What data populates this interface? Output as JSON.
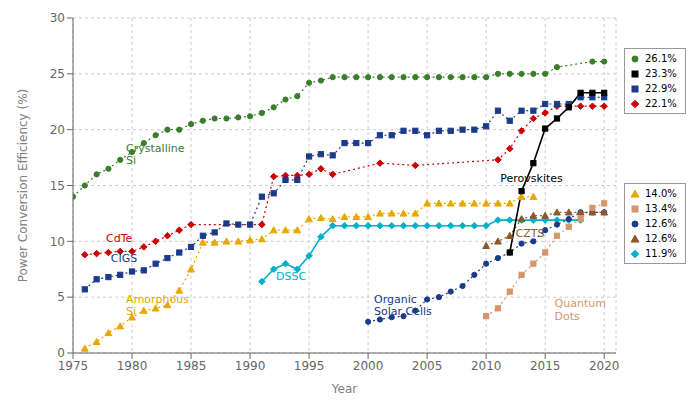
{
  "chart_data": {
    "type": "line",
    "xlabel": "Year",
    "ylabel": "Power Conversion Efficiency (%)",
    "xlim": [
      1975,
      2021
    ],
    "ylim": [
      0,
      30
    ],
    "xticks": [
      1975,
      1980,
      1985,
      1990,
      1995,
      2000,
      2005,
      2010,
      2015,
      2020
    ],
    "yticks": [
      0,
      5,
      10,
      15,
      20,
      25,
      30
    ],
    "grid": true,
    "series": [
      {
        "color": "#3a7d2a",
        "marker": "o",
        "line_style": "dotted",
        "x": [
          1975,
          1976,
          1977,
          1978,
          1979,
          1980,
          1981,
          1982,
          1983,
          1984,
          1985,
          1986,
          1987,
          1988,
          1989,
          1990,
          1991,
          1992,
          1993,
          1994,
          1995,
          1996,
          1997,
          1998,
          1999,
          2000,
          2001,
          2002,
          2003,
          2004,
          2005,
          2006,
          2007,
          2008,
          2009,
          2010,
          2011,
          2012,
          2013,
          2014,
          2015,
          2016,
          2019,
          2020
        ],
        "values": [
          14.0,
          15.0,
          16.0,
          16.5,
          17.3,
          18.0,
          18.8,
          19.5,
          20.0,
          20.0,
          20.5,
          20.8,
          21.0,
          21.0,
          21.1,
          21.2,
          21.5,
          22.0,
          22.7,
          23.0,
          24.2,
          24.4,
          24.7,
          24.7,
          24.7,
          24.7,
          24.7,
          24.7,
          24.7,
          24.7,
          24.7,
          24.7,
          24.7,
          24.7,
          24.7,
          24.7,
          25.0,
          25.0,
          25.0,
          25.0,
          25.0,
          25.6,
          26.1,
          26.1
        ]
      },
      {
        "color": "#cc0000",
        "marker": "D",
        "line_style": "dotted",
        "x": [
          1976,
          1977,
          1978,
          1979,
          1980,
          1981,
          1982,
          1983,
          1984,
          1985,
          1991,
          1992,
          1993,
          1994,
          1995,
          1996,
          1997,
          2001,
          2004,
          2011,
          2012,
          2013,
          2014,
          2015,
          2016,
          2017,
          2018,
          2019,
          2020
        ],
        "values": [
          8.8,
          8.9,
          9.0,
          9.1,
          9.1,
          9.5,
          10.0,
          10.5,
          11.0,
          11.5,
          11.5,
          15.8,
          15.9,
          15.9,
          16.0,
          16.5,
          16.0,
          17.0,
          16.8,
          17.3,
          18.3,
          19.9,
          21.0,
          21.5,
          22.1,
          22.1,
          22.1,
          22.1,
          22.1
        ]
      },
      {
        "color": "#1a3a8a",
        "marker": "s",
        "line_style": "dotted",
        "x": [
          1976,
          1977,
          1978,
          1979,
          1980,
          1981,
          1982,
          1983,
          1984,
          1985,
          1986,
          1987,
          1988,
          1989,
          1990,
          1991,
          1992,
          1993,
          1994,
          1995,
          1996,
          1997,
          1998,
          1999,
          2000,
          2001,
          2002,
          2003,
          2004,
          2005,
          2006,
          2007,
          2008,
          2009,
          2010,
          2011,
          2012,
          2013,
          2014,
          2015,
          2016,
          2017,
          2018,
          2019,
          2020
        ],
        "values": [
          5.7,
          6.6,
          6.8,
          7.0,
          7.3,
          7.4,
          8.0,
          8.5,
          9.0,
          9.5,
          10.5,
          10.8,
          11.6,
          11.5,
          11.5,
          14.0,
          14.3,
          15.5,
          15.5,
          17.6,
          17.8,
          17.7,
          18.8,
          18.8,
          18.8,
          19.5,
          19.5,
          19.9,
          19.9,
          19.5,
          19.9,
          19.9,
          20.0,
          20.0,
          20.3,
          21.7,
          20.8,
          21.7,
          21.7,
          22.3,
          22.3,
          22.3,
          22.9,
          22.9,
          22.9
        ]
      },
      {
        "color": "#e6a800",
        "marker": "^",
        "line_style": "dotted",
        "x": [
          1976,
          1977,
          1978,
          1979,
          1980,
          1981,
          1982,
          1983,
          1984,
          1985,
          1986,
          1987,
          1988,
          1989,
          1990,
          1991,
          1992,
          1993,
          1994,
          1995,
          1996,
          1997,
          1998,
          1999,
          2000,
          2001,
          2002,
          2003,
          2004,
          2005,
          2006,
          2007,
          2008,
          2009,
          2010,
          2011,
          2012,
          2013,
          2014
        ],
        "values": [
          0.4,
          1.0,
          1.8,
          2.4,
          3.2,
          3.8,
          4.0,
          4.3,
          5.6,
          7.5,
          9.9,
          9.9,
          10.0,
          10.0,
          10.1,
          10.2,
          11.0,
          11.0,
          11.0,
          12.0,
          12.1,
          12.0,
          12.2,
          12.2,
          12.2,
          12.5,
          12.5,
          12.5,
          12.5,
          13.4,
          13.4,
          13.4,
          13.4,
          13.4,
          13.4,
          13.4,
          13.4,
          14.0,
          14.0
        ]
      },
      {
        "color": "#00b0c8",
        "marker": "D",
        "line_style": "solid",
        "x": [
          1991,
          1992,
          1993,
          1994,
          1995,
          1996,
          1997,
          1998,
          1999,
          2000,
          2001,
          2002,
          2003,
          2004,
          2005,
          2006,
          2007,
          2008,
          2009,
          2010,
          2011,
          2012,
          2013,
          2014,
          2015,
          2016,
          2017,
          2018
        ],
        "values": [
          6.4,
          7.5,
          8.0,
          7.5,
          8.7,
          10.4,
          11.4,
          11.4,
          11.4,
          11.4,
          11.4,
          11.4,
          11.4,
          11.4,
          11.4,
          11.4,
          11.4,
          11.4,
          11.4,
          11.4,
          11.9,
          11.9,
          11.9,
          11.9,
          11.9,
          11.9,
          11.9,
          11.9
        ]
      },
      {
        "color": "#1a3a8a",
        "marker": "o",
        "line_style": "dotted",
        "x": [
          2000,
          2001,
          2002,
          2003,
          2004,
          2005,
          2006,
          2007,
          2008,
          2009,
          2010,
          2011,
          2012,
          2013,
          2014,
          2015,
          2016,
          2017,
          2018,
          2019,
          2020
        ],
        "values": [
          2.8,
          3.0,
          3.2,
          3.3,
          3.8,
          4.8,
          5.0,
          5.5,
          6.0,
          7.0,
          8.0,
          8.5,
          9.0,
          9.8,
          10.0,
          11.0,
          11.5,
          12.0,
          12.6,
          12.6,
          12.6
        ]
      },
      {
        "color": "#8b5a2b",
        "marker": "^",
        "line_style": "dotted",
        "x": [
          2010,
          2011,
          2012,
          2013,
          2014,
          2015,
          2016,
          2017,
          2018,
          2019,
          2020
        ],
        "values": [
          9.6,
          10.0,
          10.5,
          12.0,
          12.3,
          12.3,
          12.6,
          12.6,
          12.6,
          12.6,
          12.6
        ]
      },
      {
        "color": "#d4956a",
        "marker": "s",
        "line_style": "dotted",
        "x": [
          2010,
          2011,
          2012,
          2013,
          2014,
          2015,
          2016,
          2017,
          2018,
          2019,
          2020
        ],
        "values": [
          3.3,
          4.0,
          5.5,
          7.0,
          8.0,
          9.0,
          10.5,
          11.3,
          12.0,
          13.0,
          13.4
        ]
      },
      {
        "color": "#000000",
        "marker": "s",
        "line_style": "solid",
        "x": [
          2012,
          2013,
          2014,
          2015,
          2016,
          2017,
          2018,
          2019,
          2020
        ],
        "values": [
          9.0,
          14.5,
          17.0,
          20.1,
          21.0,
          22.0,
          23.3,
          23.3,
          23.3
        ]
      }
    ],
    "annotations": [
      {
        "text": "Crystalline\nSi",
        "x": 1979.5,
        "y": 17.8,
        "color": "#3a7d2a"
      },
      {
        "text": "CdTe",
        "x": 1977.8,
        "y": 10.3,
        "color": "#cc0000"
      },
      {
        "text": "CIGS",
        "x": 1978.2,
        "y": 8.45,
        "color": "#1a3a8a"
      },
      {
        "text": "Amorphous\nSi",
        "x": 1979.5,
        "y": 4.3,
        "color": "#e6a800"
      },
      {
        "text": "DSSC",
        "x": 1992.2,
        "y": 6.9,
        "color": "#00b0c8"
      },
      {
        "text": "Organic\nSolar Cells",
        "x": 2000.5,
        "y": 4.3,
        "color": "#1a3a8a"
      },
      {
        "text": "Perovskites",
        "x": 2011.2,
        "y": 15.7,
        "color": "#000000"
      },
      {
        "text": "CZTS",
        "x": 2012.5,
        "y": 10.7,
        "color": "#8b5a2b"
      },
      {
        "text": "Quantum\nDots",
        "x": 2015.8,
        "y": 3.9,
        "color": "#d4956a"
      }
    ],
    "label_groups": [
      [
        {
          "text": "26.1%",
          "color": "#3a7d2a",
          "marker": "o"
        },
        {
          "text": "23.3%",
          "color": "#000000",
          "marker": "s"
        },
        {
          "text": "22.9%",
          "color": "#1a3a8a",
          "marker": "s"
        },
        {
          "text": "22.1%",
          "color": "#cc0000",
          "marker": "D"
        }
      ],
      [
        {
          "text": "14.0%",
          "color": "#e6a800",
          "marker": "^"
        },
        {
          "text": "13.4%",
          "color": "#d4956a",
          "marker": "s"
        },
        {
          "text": "12.6%",
          "color": "#1a3a8a",
          "marker": "o"
        },
        {
          "text": "12.6%",
          "color": "#8b5a2b",
          "marker": "^"
        },
        {
          "text": "11.9%",
          "color": "#00b0c8",
          "marker": "D"
        }
      ]
    ]
  }
}
